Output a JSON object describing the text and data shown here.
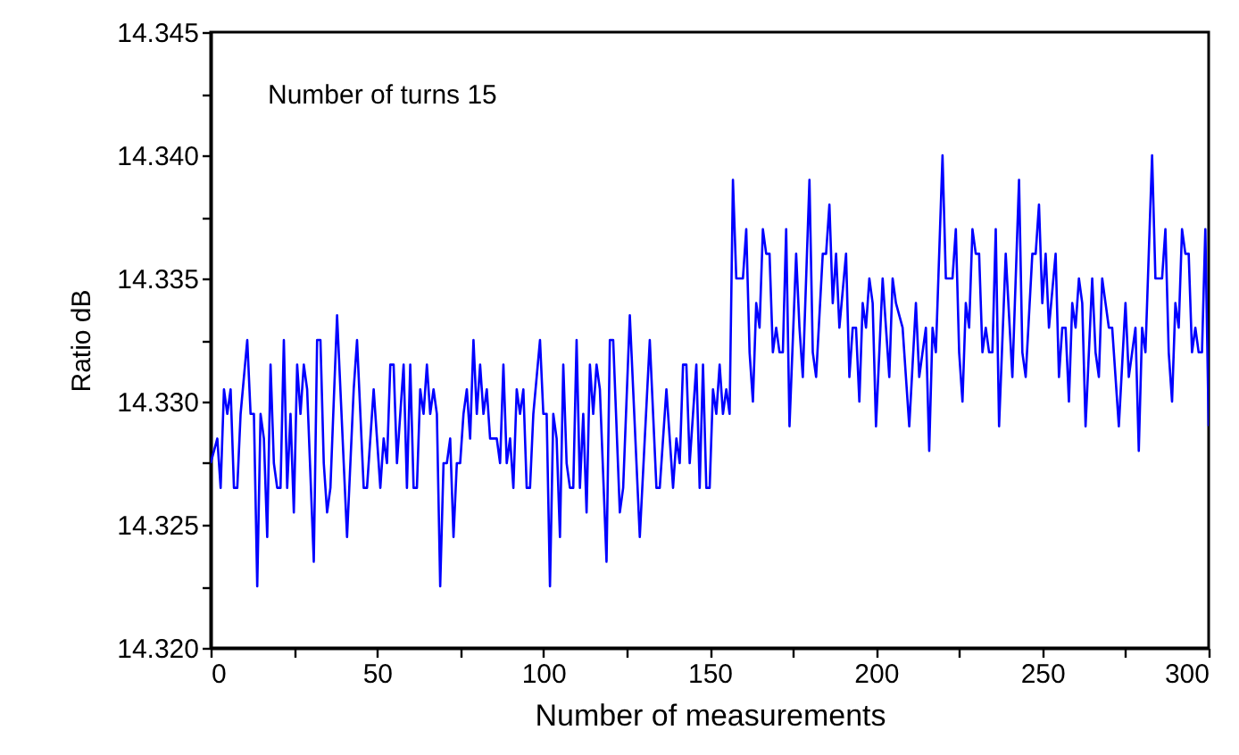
{
  "chart_data": {
    "type": "line",
    "xlabel": "Number of measurements",
    "ylabel": "Ratio dB",
    "annotations": [
      "Number of turns 15"
    ],
    "xlim": [
      0,
      300
    ],
    "ylim": [
      14.32,
      14.345
    ],
    "xticks": [
      0,
      {
        "value": 25,
        "label": null
      },
      50,
      {
        "value": 75,
        "label": null
      },
      100,
      {
        "value": 125,
        "label": null
      },
      150,
      {
        "value": 175,
        "label": null
      },
      200,
      {
        "value": 225,
        "label": null
      },
      250,
      {
        "value": 275,
        "label": null
      },
      300
    ],
    "yticks": [
      {
        "value": 14.32,
        "label": "14.320"
      },
      {
        "value": 14.3225,
        "label": null
      },
      {
        "value": 14.325,
        "label": "14.325"
      },
      {
        "value": 14.3275,
        "label": null
      },
      {
        "value": 14.33,
        "label": "14.330"
      },
      {
        "value": 14.3325,
        "label": null
      },
      {
        "value": 14.335,
        "label": "14.335"
      },
      {
        "value": 14.3375,
        "label": null
      },
      {
        "value": 14.34,
        "label": "14.340"
      },
      {
        "value": 14.3425,
        "label": null
      },
      {
        "value": 14.345,
        "label": "14.345"
      }
    ],
    "grid": false,
    "marker": "none",
    "line_style": "solid",
    "series": [
      {
        "color": "#0000ff",
        "x": [
          0,
          2,
          3,
          4,
          5,
          6,
          7,
          8,
          9,
          11,
          12,
          13,
          14,
          15,
          16,
          17,
          18,
          19,
          20,
          21,
          22,
          23,
          24,
          25,
          26,
          27,
          28,
          29,
          31,
          32,
          33,
          34,
          35,
          36,
          38,
          40,
          41,
          43,
          44,
          45,
          46,
          47,
          49,
          51,
          52,
          53,
          54,
          55,
          56,
          58,
          59,
          60,
          61,
          62,
          63,
          64,
          65,
          66,
          67,
          68,
          69,
          70,
          71,
          72,
          73,
          74,
          75,
          76,
          77,
          78,
          79,
          80,
          81,
          82,
          83,
          84,
          86,
          87,
          88,
          89,
          90,
          91,
          92,
          93,
          94,
          95,
          96,
          97,
          99,
          100,
          101,
          102,
          103,
          104,
          105,
          106,
          107,
          108,
          109,
          110,
          111,
          112,
          113,
          114,
          115,
          116,
          117,
          119,
          120,
          121,
          123,
          124,
          126,
          129,
          132,
          134,
          135,
          137,
          139,
          140,
          141,
          142,
          143,
          144,
          146,
          147,
          148,
          149,
          150,
          151,
          152,
          153,
          154,
          155,
          156,
          157,
          158,
          160,
          161,
          162,
          163,
          164,
          165,
          166,
          167,
          168,
          169,
          170,
          171,
          172,
          173,
          174,
          176,
          177,
          178,
          180,
          181,
          182,
          184,
          185,
          186,
          187,
          188,
          189,
          191,
          192,
          193,
          194,
          195,
          196,
          197,
          198,
          199,
          200,
          202,
          204,
          205,
          206,
          208,
          210,
          212,
          213,
          215,
          216,
          217,
          218,
          220,
          221,
          223,
          224,
          225,
          226,
          227,
          228,
          229,
          230,
          231,
          232,
          233,
          234,
          235,
          236,
          237,
          239,
          241,
          243,
          244,
          245,
          247,
          248,
          249,
          250,
          251,
          252,
          254,
          255,
          256,
          257,
          258,
          259,
          260,
          261,
          262,
          263,
          265,
          266,
          267,
          268,
          269,
          270,
          271,
          273,
          275,
          276,
          277,
          278,
          279,
          280,
          281,
          283,
          284,
          286,
          287,
          288,
          289,
          290,
          291,
          292,
          293,
          294,
          295,
          296,
          297,
          298,
          299,
          300
        ],
        "values": [
          14.3275,
          14.3285,
          14.3265,
          14.3305,
          14.3295,
          14.3305,
          14.3265,
          14.3265,
          14.3295,
          14.3325,
          14.3295,
          14.3295,
          14.3225,
          14.3295,
          14.3285,
          14.3245,
          14.3315,
          14.3275,
          14.3265,
          14.3265,
          14.3325,
          14.3265,
          14.3295,
          14.3255,
          14.3315,
          14.3295,
          14.3315,
          14.3305,
          14.3235,
          14.3325,
          14.3325,
          14.3275,
          14.3255,
          14.3265,
          14.3335,
          14.3275,
          14.3245,
          14.3305,
          14.3325,
          14.3295,
          14.3265,
          14.3265,
          14.3305,
          14.3265,
          14.3285,
          14.3275,
          14.3315,
          14.3315,
          14.3275,
          14.3315,
          14.3265,
          14.3315,
          14.3265,
          14.3265,
          14.3305,
          14.3295,
          14.3315,
          14.3295,
          14.3305,
          14.3295,
          14.3225,
          14.3275,
          14.3275,
          14.3285,
          14.3245,
          14.3275,
          14.3275,
          14.3295,
          14.3305,
          14.3285,
          14.3325,
          14.3295,
          14.3315,
          14.3295,
          14.3305,
          14.3285,
          14.3285,
          14.3275,
          14.3315,
          14.3275,
          14.3285,
          14.3265,
          14.3305,
          14.3295,
          14.3305,
          14.3265,
          14.3265,
          14.3295,
          14.3325,
          14.3295,
          14.3295,
          14.3225,
          14.3295,
          14.3285,
          14.3245,
          14.3315,
          14.3275,
          14.3265,
          14.3265,
          14.3325,
          14.3265,
          14.3295,
          14.3255,
          14.3315,
          14.3295,
          14.3315,
          14.3305,
          14.3235,
          14.3325,
          14.3325,
          14.3255,
          14.3265,
          14.3335,
          14.3245,
          14.3325,
          14.3265,
          14.3265,
          14.3305,
          14.3265,
          14.3285,
          14.3275,
          14.3315,
          14.3315,
          14.3275,
          14.3315,
          14.3265,
          14.3315,
          14.3265,
          14.3265,
          14.3305,
          14.3295,
          14.3315,
          14.3295,
          14.3305,
          14.3295,
          14.339,
          14.335,
          14.335,
          14.337,
          14.332,
          14.33,
          14.334,
          14.333,
          14.337,
          14.336,
          14.336,
          14.332,
          14.333,
          14.332,
          14.332,
          14.337,
          14.329,
          14.336,
          14.333,
          14.331,
          14.339,
          14.332,
          14.331,
          14.336,
          14.336,
          14.338,
          14.334,
          14.336,
          14.333,
          14.336,
          14.331,
          14.333,
          14.333,
          14.33,
          14.334,
          14.333,
          14.335,
          14.334,
          14.329,
          14.335,
          14.331,
          14.335,
          14.334,
          14.333,
          14.329,
          14.334,
          14.331,
          14.333,
          14.328,
          14.333,
          14.332,
          14.34,
          14.335,
          14.335,
          14.337,
          14.332,
          14.33,
          14.334,
          14.333,
          14.337,
          14.336,
          14.336,
          14.332,
          14.333,
          14.332,
          14.332,
          14.337,
          14.329,
          14.336,
          14.331,
          14.339,
          14.332,
          14.331,
          14.336,
          14.336,
          14.338,
          14.334,
          14.336,
          14.333,
          14.336,
          14.331,
          14.333,
          14.333,
          14.33,
          14.334,
          14.333,
          14.335,
          14.334,
          14.329,
          14.335,
          14.332,
          14.331,
          14.335,
          14.334,
          14.333,
          14.333,
          14.329,
          14.334,
          14.331,
          14.332,
          14.333,
          14.328,
          14.333,
          14.332,
          14.34,
          14.335,
          14.335,
          14.337,
          14.332,
          14.33,
          14.334,
          14.333,
          14.337,
          14.336,
          14.336,
          14.332,
          14.333,
          14.332,
          14.332,
          14.337,
          14.329
        ]
      }
    ]
  }
}
